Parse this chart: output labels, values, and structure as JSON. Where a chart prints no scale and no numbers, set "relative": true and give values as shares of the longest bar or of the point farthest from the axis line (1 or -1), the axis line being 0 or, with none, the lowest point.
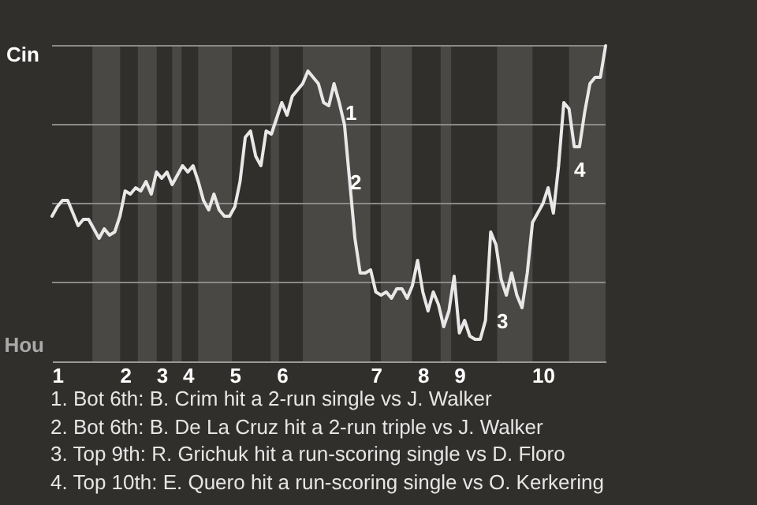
{
  "chart_data": {
    "type": "line",
    "relative": true,
    "categories": [
      null,
      "1",
      null,
      null,
      null,
      null,
      null,
      null,
      null,
      null,
      null,
      null,
      null,
      null,
      "2",
      null,
      null,
      null,
      null,
      null,
      null,
      "3",
      null,
      null,
      null,
      null,
      "4",
      null,
      null,
      null,
      null,
      null,
      null,
      null,
      null,
      "5",
      null,
      null,
      null,
      null,
      null,
      null,
      null,
      null,
      "6",
      null,
      null,
      null,
      null,
      null,
      null,
      null,
      null,
      null,
      null,
      null,
      null,
      null,
      null,
      null,
      null,
      null,
      "7",
      null,
      null,
      null,
      null,
      null,
      null,
      null,
      null,
      "8",
      null,
      null,
      null,
      null,
      null,
      null,
      "9",
      null,
      null,
      null,
      null,
      null,
      null,
      null,
      null,
      null,
      null,
      null,
      null,
      null,
      null,
      null,
      "10",
      null,
      null,
      null,
      null,
      null,
      null,
      null,
      null,
      null,
      null,
      null,
      null
    ],
    "series": [
      {
        "color": "#e8e8e8",
        "values": [
          0.46,
          0.49,
          0.51,
          0.51,
          0.47,
          0.43,
          0.45,
          0.45,
          0.42,
          0.39,
          0.42,
          0.4,
          0.41,
          0.46,
          0.54,
          0.53,
          0.55,
          0.54,
          0.57,
          0.53,
          0.6,
          0.58,
          0.6,
          0.56,
          0.59,
          0.62,
          0.6,
          0.62,
          0.57,
          0.51,
          0.48,
          0.53,
          0.48,
          0.46,
          0.46,
          0.49,
          0.57,
          0.71,
          0.73,
          0.65,
          0.62,
          0.73,
          0.72,
          0.77,
          0.82,
          0.78,
          0.84,
          0.86,
          0.88,
          0.92,
          0.9,
          0.88,
          0.82,
          0.81,
          0.88,
          0.82,
          0.75,
          0.57,
          0.39,
          0.28,
          0.28,
          0.29,
          0.22,
          0.21,
          0.22,
          0.2,
          0.23,
          0.23,
          0.2,
          0.24,
          0.32,
          0.22,
          0.16,
          0.22,
          0.18,
          0.11,
          0.16,
          0.27,
          0.09,
          0.13,
          0.08,
          0.07,
          0.07,
          0.13,
          0.41,
          0.37,
          0.26,
          0.21,
          0.28,
          0.21,
          0.17,
          0.28,
          0.44,
          0.47,
          0.5,
          0.55,
          0.47,
          0.62,
          0.82,
          0.8,
          0.68,
          0.68,
          0.79,
          0.88,
          0.9,
          0.9,
          1
        ]
      }
    ],
    "ref_lines": [
      {
        "axis": "y",
        "value": 0.25,
        "color": "#8a8a8a"
      },
      {
        "axis": "y",
        "value": 0.5,
        "color": "#8a8a8a"
      },
      {
        "axis": "y",
        "value": 0.75,
        "color": "#8a8a8a"
      },
      {
        "axis": "y",
        "value": 1,
        "color": "#8a8a8a"
      }
    ],
    "annotations": [
      "Cin",
      "Hou",
      "1",
      "2",
      "3",
      "4",
      "1. Bot 6th: B. Crim hit a 2-run single vs J. Walker",
      "2. Bot 6th: B. De La Cruz hit a 2-run triple vs J. Walker",
      "3. Top 9th: R. Grichuk hit a run-scoring single vs D. Floro",
      "4. Top 10th: E. Quero hit a run-scoring single vs O. Kerkering"
    ]
  }
}
